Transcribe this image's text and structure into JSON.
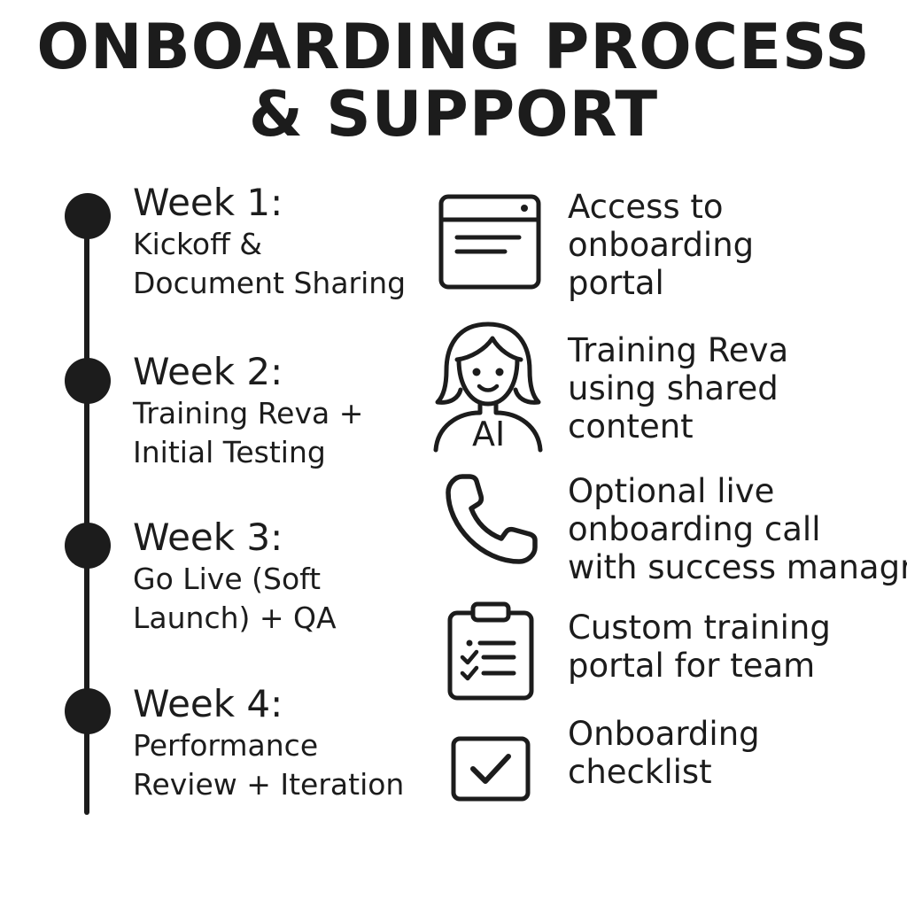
{
  "title": {
    "line1": "ONBOARDING PROCESS",
    "line2": "& SUPPORT"
  },
  "timeline": [
    {
      "label": "Week 1:",
      "desc": [
        "Kickoff &",
        "Document Sharing"
      ]
    },
    {
      "label": "Week 2:",
      "desc": [
        "Training Reva +",
        "Initial Testing"
      ]
    },
    {
      "label": "Week 3:",
      "desc": [
        "Go Live (Soft",
        "Launch) + QA"
      ]
    },
    {
      "label": "Week 4:",
      "desc": [
        "Performance",
        "Review + Iteration"
      ]
    }
  ],
  "support": [
    {
      "icon": "browser-window-icon",
      "lines": [
        "Access to",
        "onboarding",
        "portal"
      ]
    },
    {
      "icon": "ai-avatar-icon",
      "badge": "AI",
      "lines": [
        "Training Reva",
        "using shared",
        "content"
      ]
    },
    {
      "icon": "phone-icon",
      "lines": [
        "Optional live",
        "onboarding call",
        "with success managr"
      ]
    },
    {
      "icon": "clipboard-checklist-icon",
      "lines": [
        "Custom training",
        "portal for team"
      ]
    },
    {
      "icon": "checkbox-icon",
      "lines": [
        "Onboarding",
        "checklist"
      ]
    }
  ],
  "colors": {
    "ink": "#1c1c1c",
    "background": "#ffffff"
  }
}
